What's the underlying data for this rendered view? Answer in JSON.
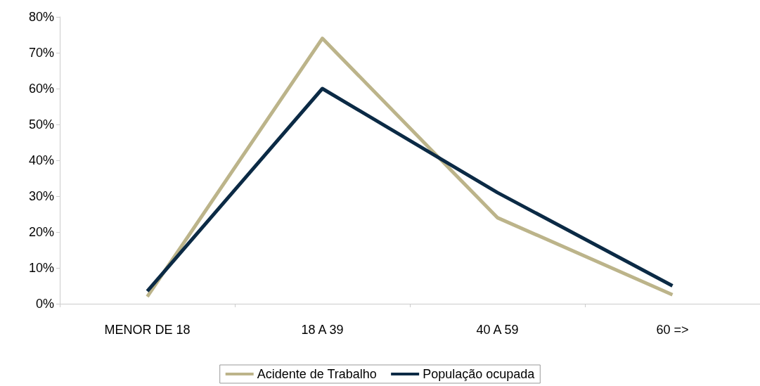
{
  "chart_data": {
    "type": "line",
    "categories": [
      "MENOR DE 18",
      "18 A 39",
      "40 A 59",
      "60 =>"
    ],
    "series": [
      {
        "name": "Acidente de Trabalho",
        "color": "#bcb48a",
        "values": [
          2,
          74,
          24,
          2.5
        ]
      },
      {
        "name": "População ocupada",
        "color": "#0b2a45",
        "values": [
          3.5,
          60,
          31,
          5
        ]
      }
    ],
    "ylim": [
      0,
      80
    ],
    "yticks": [
      {
        "value": 0,
        "label": "0%"
      },
      {
        "value": 10,
        "label": "10%"
      },
      {
        "value": 20,
        "label": "20%"
      },
      {
        "value": 30,
        "label": "30%"
      },
      {
        "value": 40,
        "label": "40%"
      },
      {
        "value": 50,
        "label": "50%"
      },
      {
        "value": 60,
        "label": "60%"
      },
      {
        "value": 70,
        "label": "70%"
      },
      {
        "value": 80,
        "label": "80%"
      }
    ],
    "grid": false,
    "legend": "bottom",
    "line_style": "solid"
  }
}
